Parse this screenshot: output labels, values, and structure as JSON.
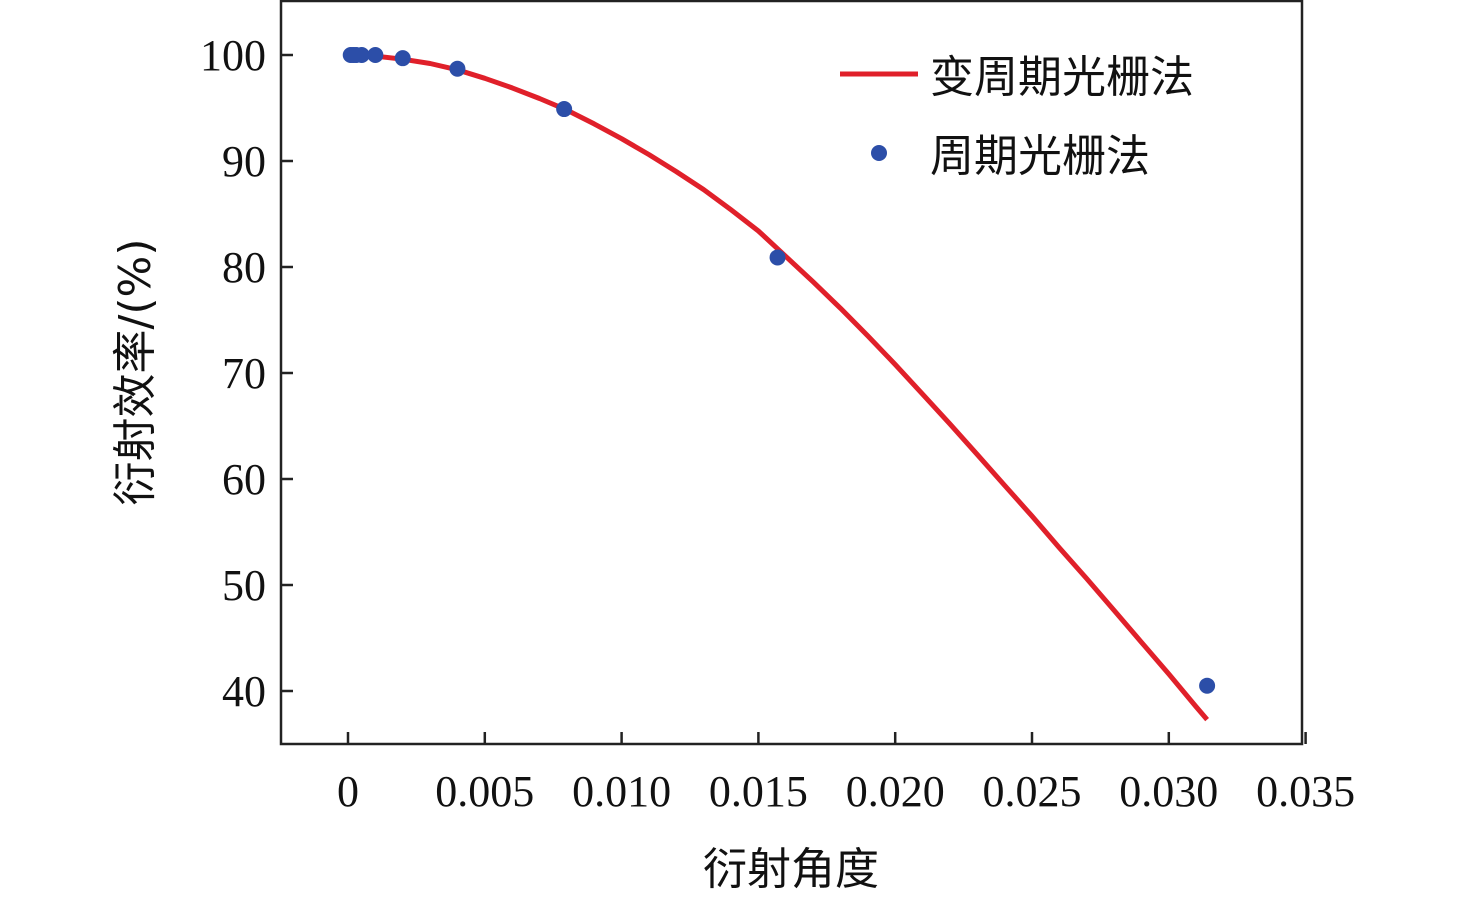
{
  "chart_data": {
    "type": "line",
    "title": "",
    "xlabel": "衍射角度",
    "ylabel": "衍射效率/(%)",
    "xlim": [
      -0.0025,
      0.0351
    ],
    "ylim": [
      35,
      105
    ],
    "x_ticks": [
      0,
      0.005,
      0.01,
      0.015,
      0.02,
      0.025,
      0.03,
      0.035
    ],
    "x_tick_labels": [
      "0",
      "0.005",
      "0.010",
      "0.015",
      "0.020",
      "0.025",
      "0.030",
      "0.035"
    ],
    "y_ticks": [
      40,
      50,
      60,
      70,
      80,
      90,
      100
    ],
    "y_tick_labels": [
      "40",
      "50",
      "60",
      "70",
      "80",
      "90",
      "100"
    ],
    "legend_position": "top-right",
    "grid": false,
    "series": [
      {
        "name": "变周期光栅法",
        "kind": "line",
        "color": "#e0202a",
        "x": [
          0,
          0.001,
          0.002,
          0.003,
          0.004,
          0.005,
          0.006,
          0.007,
          0.008,
          0.009,
          0.01,
          0.011,
          0.012,
          0.013,
          0.014,
          0.015,
          0.016,
          0.017,
          0.018,
          0.019,
          0.02,
          0.021,
          0.022,
          0.023,
          0.024,
          0.025,
          0.026,
          0.027,
          0.028,
          0.029,
          0.03,
          0.031,
          0.0314
        ],
        "y": [
          100,
          99.9,
          99.6,
          99.2,
          98.6,
          97.8,
          96.9,
          95.9,
          94.8,
          93.5,
          92.1,
          90.6,
          89.0,
          87.3,
          85.4,
          83.4,
          81.0,
          78.6,
          76.1,
          73.5,
          70.8,
          68.0,
          65.2,
          62.3,
          59.4,
          56.5,
          53.5,
          50.6,
          47.6,
          44.6,
          41.6,
          38.5,
          37.3
        ]
      },
      {
        "name": "周期光栅法",
        "kind": "scatter",
        "color": "#2c4ea8",
        "x": [
          0.0001,
          0.0002,
          0.0003,
          0.0005,
          0.001,
          0.002,
          0.004,
          0.0079,
          0.0157,
          0.0314
        ],
        "y": [
          100,
          100,
          100,
          100,
          100,
          99.7,
          98.7,
          94.9,
          80.9,
          40.5
        ]
      }
    ]
  }
}
